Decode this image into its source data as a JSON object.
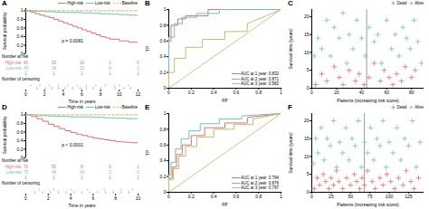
{
  "chart_data": [
    {
      "type": "survival",
      "title": "A",
      "xlabel": "Time in years",
      "ylabel": "Survival probability",
      "xlim": [
        0,
        12
      ],
      "xticks": [
        0,
        2,
        4,
        6,
        8,
        10,
        12
      ],
      "ylim": [
        0,
        1.05
      ],
      "yticks": [
        0,
        0.2,
        0.4,
        0.6,
        0.8,
        1
      ],
      "legend": "upper right",
      "annotations": [
        "p = 0.0081"
      ],
      "series": [
        {
          "name": "High-risk",
          "color": "#e07070",
          "x": [
            0,
            0.5,
            1,
            1.5,
            2,
            2.5,
            3,
            3.5,
            4,
            4.5,
            5,
            5.5,
            6,
            6.5,
            7,
            7.5,
            8,
            8.5,
            9,
            10,
            11,
            12
          ],
          "values": [
            1.0,
            0.97,
            0.93,
            0.9,
            0.87,
            0.84,
            0.8,
            0.76,
            0.72,
            0.68,
            0.64,
            0.6,
            0.56,
            0.52,
            0.48,
            0.44,
            0.4,
            0.37,
            0.34,
            0.3,
            0.27,
            0.25
          ]
        },
        {
          "name": "Low-risk",
          "color": "#70bfbf",
          "x": [
            0,
            1,
            2,
            3,
            4,
            5,
            6,
            7,
            8,
            9,
            10,
            11,
            12
          ],
          "values": [
            1.0,
            0.99,
            0.98,
            0.97,
            0.96,
            0.96,
            0.95,
            0.94,
            0.93,
            0.92,
            0.91,
            0.9,
            0.89
          ]
        },
        {
          "name": "Baseline",
          "color": "#c8b870",
          "line_style": "dashed",
          "x": [
            0,
            12
          ],
          "values": [
            1.0,
            1.0
          ]
        }
      ],
      "at_risk": {
        "title": "Number at risk",
        "times": [
          0,
          3,
          6,
          9,
          12
        ],
        "rows": [
          {
            "name": "High-risk",
            "color": "#e07070",
            "values": [
              42,
              33,
              16,
              1,
              0
            ]
          },
          {
            "name": "Low-risk",
            "color": "#70bfbf",
            "values": [
              43,
              38,
              20,
              8,
              1
            ]
          },
          {
            "color": "#888888",
            "values": [
              1,
              1,
              1,
              1,
              1
            ]
          }
        ]
      },
      "censoring": {
        "title": "Number of censoring",
        "series": [
          {
            "color": "#e07070",
            "x": [
              1.2,
              2.1,
              2.8,
              3.5,
              4.2,
              5.0,
              5.8,
              6.5,
              7.2,
              8.0,
              9.5,
              10.5,
              11.2
            ]
          },
          {
            "color": "#70bfbf",
            "x": [
              0.5,
              1.5,
              2.5,
              3.5,
              4.5,
              5.5,
              6.5,
              7.5,
              8.5,
              9.5,
              10.0,
              11.0
            ]
          }
        ]
      }
    },
    {
      "type": "line",
      "title": "B",
      "xlabel": "FP",
      "ylabel": "TP",
      "xlim": [
        0,
        1
      ],
      "xticks": [
        0,
        0.2,
        0.4,
        0.6,
        0.8,
        1
      ],
      "ylim": [
        0,
        1
      ],
      "yticks": [
        0,
        0.2,
        0.4,
        0.6,
        0.8,
        1
      ],
      "legend": "lower right",
      "series": [
        {
          "name": "AUC at 1 year: 0.832",
          "color": "#e07070",
          "x": [
            0.0,
            0.0,
            0.02,
            0.02,
            0.08,
            0.08,
            0.15,
            0.15,
            0.35,
            0.35,
            1.0
          ],
          "values": [
            0.0,
            0.6,
            0.6,
            0.8,
            0.8,
            0.88,
            0.88,
            0.92,
            0.92,
            1.0,
            1.0
          ]
        },
        {
          "name": "AUC at 2 year: 0.871",
          "color": "#70bfbf",
          "x": [
            0.0,
            0.0,
            0.05,
            0.05,
            0.12,
            0.12,
            0.25,
            0.25,
            0.45,
            0.45,
            1.0
          ],
          "values": [
            0.0,
            0.65,
            0.65,
            0.82,
            0.82,
            0.9,
            0.9,
            0.95,
            0.95,
            1.0,
            1.0
          ]
        },
        {
          "name": "AUC at 3 year: 0.582",
          "color": "#c8b870",
          "x": [
            0.0,
            0.0,
            0.05,
            0.05,
            0.15,
            0.15,
            0.3,
            0.3,
            0.5,
            0.5,
            0.7,
            0.7,
            1.0
          ],
          "values": [
            0.0,
            0.2,
            0.2,
            0.38,
            0.38,
            0.52,
            0.52,
            0.62,
            0.62,
            0.72,
            0.72,
            0.82,
            1.0
          ]
        },
        {
          "color": "#d4c090",
          "x": [
            0,
            1
          ],
          "values": [
            0,
            1
          ]
        }
      ]
    },
    {
      "type": "scatter",
      "title": "C",
      "xlabel": "Patients (increasing risk score)",
      "ylabel": "Survival time (years)",
      "xlim": [
        0,
        90
      ],
      "xticks": [
        0,
        20,
        40,
        60,
        80
      ],
      "ylim": [
        0,
        22
      ],
      "yticks": [
        0,
        5,
        10,
        15,
        20
      ],
      "legend": "upper right",
      "marker": "plus",
      "vline": {
        "x": 44,
        "color": "gray"
      },
      "series": [
        {
          "name": "Dead",
          "color": "#e07070",
          "x": [
            3,
            8,
            12,
            18,
            22,
            25,
            30,
            35,
            38,
            42,
            46,
            50,
            55,
            58,
            62,
            65,
            68,
            72,
            75,
            80,
            83
          ],
          "values": [
            1,
            4,
            2,
            6,
            3,
            1,
            5,
            2,
            4,
            1,
            3,
            7,
            2,
            5,
            3,
            1,
            4,
            2,
            6,
            3,
            5
          ]
        },
        {
          "name": "Alive",
          "color": "#70bfbf",
          "x": [
            2,
            5,
            8,
            12,
            15,
            18,
            22,
            25,
            28,
            30,
            33,
            36,
            40,
            43,
            46,
            50,
            53,
            56,
            60,
            64,
            67,
            70,
            73,
            76,
            79,
            82,
            85,
            88
          ],
          "values": [
            9,
            14,
            11,
            19,
            9,
            17,
            14,
            21,
            7,
            15,
            11,
            19,
            14,
            9,
            17,
            13,
            15,
            7,
            19,
            11,
            15,
            9,
            17,
            14,
            11,
            19,
            13,
            7
          ]
        }
      ]
    },
    {
      "type": "survival",
      "title": "D",
      "xlabel": "Time in years",
      "ylabel": "Survival probability",
      "xlim": [
        0,
        10
      ],
      "xticks": [
        0,
        2,
        4,
        6,
        8,
        10
      ],
      "ylim": [
        0,
        1.05
      ],
      "yticks": [
        0,
        0.2,
        0.4,
        0.6,
        0.8,
        1
      ],
      "legend": "upper right",
      "annotations": [
        "p < 0.0001"
      ],
      "series": [
        {
          "name": "High-risk",
          "color": "#e07070",
          "x": [
            0,
            0.5,
            1,
            1.5,
            2,
            2.5,
            3,
            3.5,
            4,
            4.5,
            5,
            5.5,
            6,
            6.5,
            7,
            7.5,
            8,
            8.5,
            9,
            9.5,
            10
          ],
          "values": [
            1.0,
            0.96,
            0.91,
            0.85,
            0.78,
            0.73,
            0.68,
            0.63,
            0.59,
            0.55,
            0.52,
            0.49,
            0.46,
            0.44,
            0.42,
            0.4,
            0.38,
            0.37,
            0.36,
            0.35,
            0.34
          ]
        },
        {
          "name": "Low-risk",
          "color": "#70bfbf",
          "x": [
            0,
            1,
            2,
            3,
            4,
            5,
            6,
            7,
            8,
            9,
            10
          ],
          "values": [
            1.0,
            0.98,
            0.97,
            0.96,
            0.95,
            0.95,
            0.94,
            0.93,
            0.92,
            0.91,
            0.9
          ]
        },
        {
          "name": "Baseline",
          "color": "#c8b870",
          "line_style": "dashed",
          "x": [
            0,
            10
          ],
          "values": [
            1.0,
            1.0
          ]
        }
      ],
      "at_risk": {
        "title": "Number at risk",
        "times": [
          0,
          2.5,
          5,
          7.5,
          10
        ],
        "rows": [
          {
            "name": "High-risk",
            "color": "#e07070",
            "values": [
              70,
              50,
              8,
              0,
              1
            ]
          },
          {
            "name": "Low-risk",
            "color": "#70bfbf",
            "values": [
              70,
              48,
              14,
              2,
              0
            ]
          },
          {
            "color": "#888888",
            "values": [
              1,
              1,
              1,
              1,
              1
            ]
          }
        ]
      },
      "censoring": {
        "title": "Number of censoring",
        "series": [
          {
            "color": "#e07070",
            "x": [
              0.8,
              1.5,
              2.2,
              2.9,
              3.6,
              4.3,
              5.0,
              5.7,
              6.4,
              7.1,
              7.8,
              8.5,
              9.2
            ]
          },
          {
            "color": "#70bfbf",
            "x": [
              1.2,
              2.5,
              4.0,
              5.5,
              7.0,
              8.5,
              9.5
            ]
          }
        ]
      }
    },
    {
      "type": "line",
      "title": "E",
      "xlabel": "FP",
      "ylabel": "TP",
      "xlim": [
        0,
        1
      ],
      "xticks": [
        0,
        0.2,
        0.4,
        0.6,
        0.8,
        1
      ],
      "ylim": [
        0,
        1
      ],
      "yticks": [
        0,
        0.2,
        0.4,
        0.6,
        0.8,
        1
      ],
      "legend": "lower right",
      "series": [
        {
          "name": "AUC at 1 year: 0.794",
          "color": "#e07070",
          "x": [
            0.0,
            0.0,
            0.03,
            0.03,
            0.07,
            0.07,
            0.12,
            0.12,
            0.2,
            0.2,
            0.32,
            0.32,
            0.5,
            0.5,
            0.7,
            0.7,
            1.0
          ],
          "values": [
            0.0,
            0.18,
            0.18,
            0.32,
            0.32,
            0.48,
            0.48,
            0.6,
            0.6,
            0.72,
            0.72,
            0.82,
            0.82,
            0.88,
            0.88,
            0.95,
            1.0
          ]
        },
        {
          "name": "AUC at 2 year: 0.876",
          "color": "#70bfbf",
          "x": [
            0.0,
            0.0,
            0.02,
            0.02,
            0.06,
            0.06,
            0.11,
            0.11,
            0.18,
            0.18,
            0.28,
            0.28,
            0.45,
            0.45,
            0.65,
            0.65,
            1.0
          ],
          "values": [
            0.0,
            0.22,
            0.22,
            0.38,
            0.38,
            0.55,
            0.55,
            0.68,
            0.68,
            0.78,
            0.78,
            0.87,
            0.87,
            0.93,
            0.93,
            0.97,
            1.0
          ]
        },
        {
          "name": "AUC at 3 year: 0.797",
          "color": "#c8b870",
          "x": [
            0.0,
            0.0,
            0.04,
            0.04,
            0.09,
            0.09,
            0.15,
            0.15,
            0.25,
            0.25,
            0.4,
            0.4,
            0.58,
            0.58,
            0.75,
            0.75,
            1.0
          ],
          "values": [
            0.0,
            0.16,
            0.16,
            0.3,
            0.3,
            0.46,
            0.46,
            0.58,
            0.58,
            0.7,
            0.7,
            0.8,
            0.8,
            0.86,
            0.86,
            0.93,
            1.0
          ]
        },
        {
          "color": "#d4c090",
          "x": [
            0,
            1
          ],
          "values": [
            0,
            1
          ]
        }
      ]
    },
    {
      "type": "scatter",
      "title": "F",
      "xlabel": "Patients (increasing risk score)",
      "ylabel": "Survival time (years)",
      "xlim": [
        0,
        145
      ],
      "xticks": [
        0,
        25,
        50,
        75,
        100,
        125
      ],
      "ylim": [
        0,
        22
      ],
      "yticks": [
        0,
        5,
        10,
        15,
        20
      ],
      "legend": "upper right",
      "marker": "plus",
      "vline": {
        "x": 68,
        "color": "gray"
      },
      "series": [
        {
          "name": "Dead",
          "color": "#e07070",
          "x": [
            3,
            7,
            10,
            15,
            18,
            22,
            25,
            28,
            32,
            35,
            40,
            45,
            50,
            55,
            58,
            62,
            65,
            68,
            72,
            78,
            82,
            88,
            92,
            97,
            102,
            107,
            112,
            118,
            122,
            128,
            132,
            138
          ],
          "values": [
            1,
            4,
            2,
            5,
            3,
            1,
            4,
            2,
            6,
            3,
            1,
            4,
            2,
            5,
            3,
            1,
            4,
            2,
            6,
            3,
            1,
            4,
            2,
            5,
            3,
            1,
            4,
            2,
            6,
            3,
            1,
            4
          ]
        },
        {
          "name": "Alive",
          "color": "#70bfbf",
          "x": [
            2,
            5,
            8,
            12,
            16,
            20,
            24,
            28,
            32,
            36,
            40,
            44,
            48,
            52,
            56,
            60,
            64,
            68,
            72,
            76,
            80,
            84,
            88,
            92,
            96,
            100,
            105,
            110,
            115,
            120,
            125,
            130,
            135,
            140
          ],
          "values": [
            8,
            15,
            11,
            18,
            9,
            15,
            13,
            20,
            7,
            14,
            11,
            18,
            9,
            15,
            13,
            20,
            7,
            14,
            11,
            18,
            9,
            15,
            13,
            20,
            7,
            14,
            11,
            18,
            9,
            15,
            13,
            20,
            7,
            14
          ]
        }
      ]
    }
  ]
}
